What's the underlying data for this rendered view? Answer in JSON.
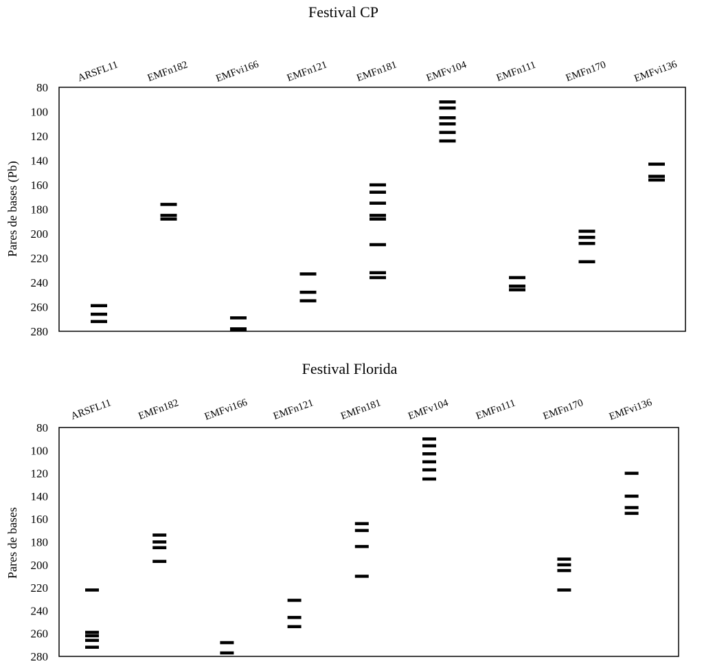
{
  "chart_data": [
    {
      "type": "scatter",
      "title": "Festival  CP",
      "ylabel": "Pares de bases (Pb)",
      "xlabel": "",
      "ylim": [
        80,
        280
      ],
      "y_inverted": true,
      "yticks": [
        "80",
        "100",
        "120",
        "140",
        "160",
        "180",
        "200",
        "220",
        "240",
        "260",
        "280"
      ],
      "categories": [
        "ARSFL11",
        "EMFn182",
        "EMFvi166",
        "EMFn121",
        "EMFn181",
        "EMFv104",
        "EMFn111",
        "EMFn170",
        "EMFvi136"
      ],
      "bands": [
        [
          259,
          266,
          272
        ],
        [
          176,
          185,
          188
        ],
        [
          269,
          278,
          280
        ],
        [
          233,
          248,
          255
        ],
        [
          160,
          166,
          175,
          185,
          188,
          209,
          232,
          236
        ],
        [
          92,
          97,
          105,
          110,
          117,
          124
        ],
        [
          236,
          243,
          246
        ],
        [
          198,
          203,
          208,
          223
        ],
        [
          143,
          153,
          156
        ]
      ],
      "grid": false
    },
    {
      "type": "scatter",
      "title": "Festival  Florida",
      "ylabel": "Pares de bases",
      "xlabel": "",
      "ylim": [
        80,
        280
      ],
      "y_inverted": true,
      "yticks": [
        "80",
        "100",
        "120",
        "140",
        "160",
        "180",
        "200",
        "220",
        "240",
        "260",
        "280"
      ],
      "categories": [
        "ARSFL11",
        "EMFn182",
        "EMFvi166",
        "EMFn121",
        "EMFn181",
        "EMFv104",
        "EMFn111",
        "EMFn170",
        "EMFvi136"
      ],
      "bands": [
        [
          222,
          259,
          262,
          266,
          272
        ],
        [
          174,
          180,
          185,
          197
        ],
        [
          268,
          277
        ],
        [
          231,
          246,
          254
        ],
        [
          164,
          170,
          184,
          210
        ],
        [
          90,
          96,
          103,
          110,
          117,
          125
        ],
        [],
        [
          195,
          200,
          205,
          222
        ],
        [
          120,
          140,
          150,
          155
        ]
      ],
      "grid": false
    }
  ]
}
